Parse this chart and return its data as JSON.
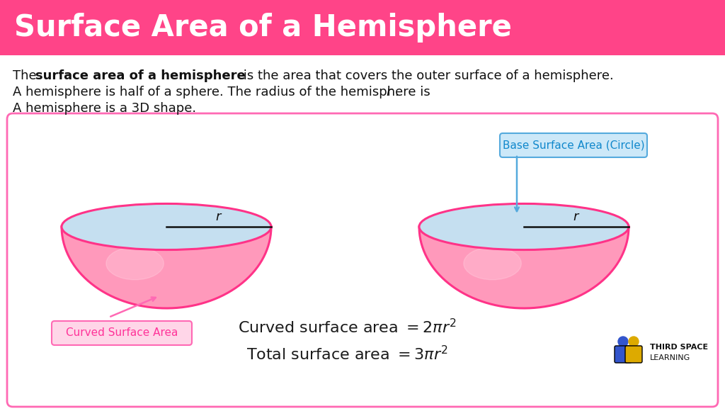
{
  "title": "Surface Area of a Hemisphere",
  "title_bg_color": "#FF4488",
  "title_text_color": "#FFFFFF",
  "bg_color": "#FFFFFF",
  "box_border_color": "#FF69B4",
  "hemisphere_pink": "#FF99BB",
  "hemisphere_pink_dark": "#FF3388",
  "hemisphere_blue": "#C5DFF0",
  "label_curved_border": "#FF69B4",
  "label_curved_bg": "#FFD6E8",
  "label_curved_text": "#FF3399",
  "label_base_border": "#55AADD",
  "label_base_bg": "#CCE8F8",
  "label_base_text": "#1188CC",
  "formula1": "Curved surface area $= 2\\pi r^2$",
  "formula2": "Total surface area $= 3\\pi r^2$",
  "formula_color": "#1a1a1a",
  "label_curved": "Curved Surface Area",
  "label_base": "Base Surface Area (Circle)"
}
